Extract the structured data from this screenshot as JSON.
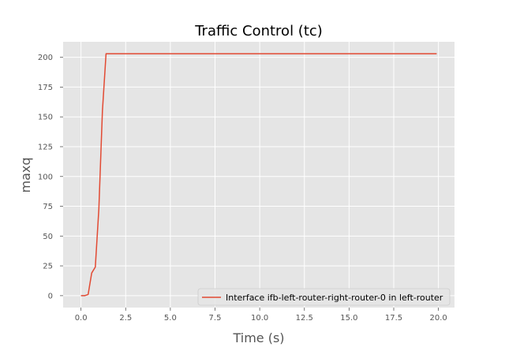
{
  "chart_data": {
    "type": "line",
    "title": "Traffic Control (tc)",
    "xlabel": "Time (s)",
    "ylabel": "maxq",
    "xlim": [
      -1.0,
      20.9
    ],
    "ylim": [
      -10.0,
      213.0
    ],
    "xticks": [
      0.0,
      2.5,
      5.0,
      7.5,
      10.0,
      12.5,
      15.0,
      17.5,
      20.0
    ],
    "xtick_labels": [
      "0.0",
      "2.5",
      "5.0",
      "7.5",
      "10.0",
      "12.5",
      "15.0",
      "17.5",
      "20.0"
    ],
    "yticks": [
      0,
      25,
      50,
      75,
      100,
      125,
      150,
      175,
      200
    ],
    "ytick_labels": [
      "0",
      "25",
      "50",
      "75",
      "100",
      "125",
      "150",
      "175",
      "200"
    ],
    "grid": true,
    "legend_position": "lower-right",
    "colors": {
      "series": "#e24a33",
      "background": "#e5e5e5",
      "grid": "#ffffff"
    },
    "series": [
      {
        "name": "Interface ifb-left-router-right-router-0 in left-router",
        "x": [
          0.0,
          0.2,
          0.4,
          0.6,
          0.8,
          1.0,
          1.2,
          1.4,
          1.6,
          2.0,
          5.0,
          10.0,
          15.0,
          19.9
        ],
        "y": [
          0,
          0,
          1,
          19,
          24,
          73,
          155,
          203,
          203,
          203,
          203,
          203,
          203,
          203
        ]
      }
    ]
  }
}
